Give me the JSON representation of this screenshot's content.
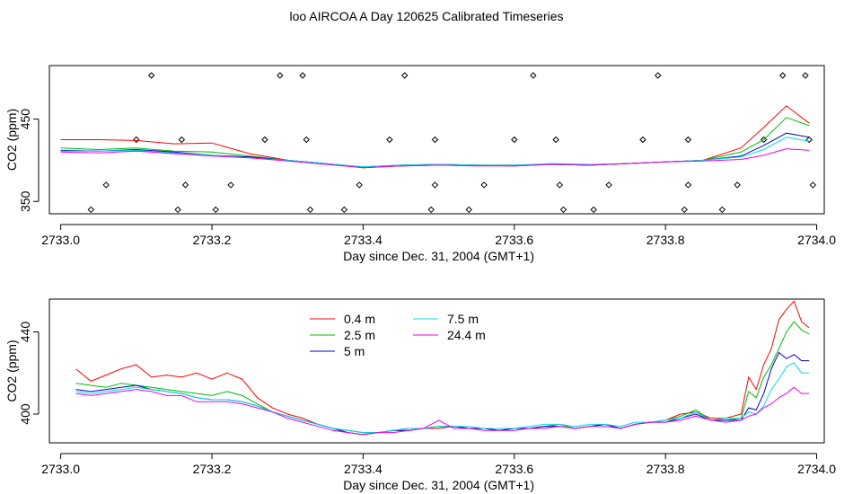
{
  "title": "loo AIRCOA A  Day 120625  Calibrated Timeseries",
  "chart_data": [
    {
      "type": "line",
      "xlabel": "Day since Dec. 31, 2004 (GMT+1)",
      "ylabel": "CO2 (ppm)",
      "xlim": [
        2732.985,
        2734.01
      ],
      "ylim": [
        335,
        515
      ],
      "xticks": [
        "2733.0",
        "2733.2",
        "2733.4",
        "2733.6",
        "2733.8",
        "2734.0"
      ],
      "yticks": [
        "350",
        "450"
      ],
      "ytick_values": [
        350,
        450
      ],
      "series": [
        {
          "name": "0.4 m",
          "color": "#ff0000",
          "x": [
            2733.0,
            2733.05,
            2733.1,
            2733.15,
            2733.2,
            2733.25,
            2733.3,
            2733.35,
            2733.4,
            2733.45,
            2733.5,
            2733.55,
            2733.6,
            2733.65,
            2733.7,
            2733.75,
            2733.8,
            2733.85,
            2733.9,
            2733.93,
            2733.96,
            2733.99
          ],
          "y": [
            425,
            425,
            424,
            420,
            421,
            408,
            400,
            396,
            392,
            394,
            395,
            394,
            394,
            395,
            394,
            396,
            398,
            400,
            415,
            440,
            466,
            445
          ]
        },
        {
          "name": "2.5 m",
          "color": "#00bb00",
          "x": [
            2733.0,
            2733.05,
            2733.1,
            2733.15,
            2733.2,
            2733.25,
            2733.3,
            2733.35,
            2733.4,
            2733.45,
            2733.5,
            2733.55,
            2733.6,
            2733.65,
            2733.7,
            2733.75,
            2733.8,
            2733.85,
            2733.9,
            2733.93,
            2733.96,
            2733.99
          ],
          "y": [
            415,
            413,
            415,
            411,
            410,
            405,
            400,
            396,
            392,
            394,
            395,
            394,
            394,
            395,
            394,
            396,
            398,
            400,
            410,
            425,
            452,
            442
          ]
        },
        {
          "name": "5 m",
          "color": "#0000cc",
          "x": [
            2733.0,
            2733.05,
            2733.1,
            2733.15,
            2733.2,
            2733.25,
            2733.3,
            2733.35,
            2733.4,
            2733.45,
            2733.5,
            2733.55,
            2733.6,
            2733.65,
            2733.7,
            2733.75,
            2733.8,
            2733.85,
            2733.9,
            2733.93,
            2733.96,
            2733.99
          ],
          "y": [
            412,
            411,
            413,
            410,
            406,
            404,
            400,
            396,
            391,
            393,
            394,
            394,
            393,
            395,
            394,
            396,
            398,
            400,
            405,
            418,
            433,
            428
          ]
        },
        {
          "name": "7.5 m",
          "color": "#00dddd",
          "x": [
            2733.0,
            2733.05,
            2733.1,
            2733.15,
            2733.2,
            2733.25,
            2733.3,
            2733.35,
            2733.4,
            2733.45,
            2733.5,
            2733.55,
            2733.6,
            2733.65,
            2733.7,
            2733.75,
            2733.8,
            2733.85,
            2733.9,
            2733.93,
            2733.96,
            2733.99
          ],
          "y": [
            411,
            411,
            412,
            409,
            406,
            403,
            400,
            396,
            392,
            394,
            395,
            394,
            394,
            396,
            395,
            396,
            398,
            400,
            404,
            413,
            428,
            423
          ]
        },
        {
          "name": "24.4 m",
          "color": "#ee00ee",
          "x": [
            2733.0,
            2733.05,
            2733.1,
            2733.15,
            2733.2,
            2733.25,
            2733.3,
            2733.35,
            2733.4,
            2733.45,
            2733.5,
            2733.55,
            2733.6,
            2733.65,
            2733.7,
            2733.75,
            2733.8,
            2733.85,
            2733.9,
            2733.93,
            2733.96,
            2733.99
          ],
          "y": [
            410,
            409,
            411,
            408,
            405,
            403,
            399,
            395,
            391,
            393,
            394,
            393,
            393,
            395,
            394,
            396,
            398,
            399,
            401,
            406,
            414,
            412
          ]
        }
      ],
      "markers": {
        "shape": "diamond",
        "x": [
          2733.04,
          2733.06,
          2733.1,
          2733.12,
          2733.155,
          2733.16,
          2733.165,
          2733.205,
          2733.225,
          2733.27,
          2733.29,
          2733.32,
          2733.325,
          2733.33,
          2733.375,
          2733.395,
          2733.435,
          2733.455,
          2733.49,
          2733.495,
          2733.495,
          2733.54,
          2733.56,
          2733.6,
          2733.625,
          2733.655,
          2733.66,
          2733.665,
          2733.705,
          2733.725,
          2733.77,
          2733.79,
          2733.825,
          2733.83,
          2733.83,
          2733.875,
          2733.895,
          2733.93,
          2733.955,
          2733.985,
          2733.99,
          2733.995
        ],
        "y": [
          340,
          370,
          425,
          503,
          340,
          425,
          370,
          340,
          370,
          425,
          503,
          503,
          425,
          340,
          340,
          370,
          425,
          503,
          340,
          370,
          425,
          340,
          370,
          425,
          503,
          425,
          370,
          340,
          340,
          370,
          425,
          503,
          340,
          370,
          425,
          340,
          370,
          425,
          503,
          503,
          425,
          370
        ]
      }
    },
    {
      "type": "line",
      "xlabel": "Day since Dec. 31, 2004 (GMT+1)",
      "ylabel": "CO2 (ppm)",
      "xlim": [
        2732.985,
        2734.01
      ],
      "ylim": [
        386,
        456
      ],
      "xticks": [
        "2733.0",
        "2733.2",
        "2733.4",
        "2733.6",
        "2733.8",
        "2734.0"
      ],
      "yticks": [
        "400",
        "440"
      ],
      "ytick_values": [
        400,
        440
      ],
      "legend": "top-left",
      "series": [
        {
          "name": "0.4 m",
          "color": "#ff0000",
          "x": [
            2733.02,
            2733.04,
            2733.06,
            2733.08,
            2733.1,
            2733.12,
            2733.14,
            2733.16,
            2733.18,
            2733.2,
            2733.22,
            2733.24,
            2733.26,
            2733.28,
            2733.3,
            2733.32,
            2733.34,
            2733.36,
            2733.38,
            2733.4,
            2733.42,
            2733.44,
            2733.46,
            2733.48,
            2733.5,
            2733.52,
            2733.54,
            2733.56,
            2733.58,
            2733.6,
            2733.62,
            2733.64,
            2733.66,
            2733.68,
            2733.7,
            2733.72,
            2733.74,
            2733.76,
            2733.78,
            2733.8,
            2733.82,
            2733.84,
            2733.86,
            2733.88,
            2733.9,
            2733.91,
            2733.92,
            2733.93,
            2733.94,
            2733.95,
            2733.96,
            2733.97,
            2733.98,
            2733.99
          ],
          "y": [
            422,
            416,
            419,
            422,
            424,
            418,
            419,
            418,
            420,
            417,
            420,
            417,
            408,
            403,
            400,
            398,
            395,
            393,
            392,
            391,
            391,
            392,
            392,
            393,
            393,
            394,
            393,
            393,
            392,
            393,
            393,
            394,
            394,
            393,
            394,
            395,
            393,
            395,
            396,
            397,
            400,
            401,
            398,
            398,
            400,
            418,
            412,
            424,
            432,
            446,
            451,
            455,
            445,
            442
          ]
        },
        {
          "name": "2.5 m",
          "color": "#00bb00",
          "x": [
            2733.02,
            2733.04,
            2733.06,
            2733.08,
            2733.1,
            2733.12,
            2733.14,
            2733.16,
            2733.18,
            2733.2,
            2733.22,
            2733.24,
            2733.26,
            2733.28,
            2733.3,
            2733.32,
            2733.34,
            2733.36,
            2733.38,
            2733.4,
            2733.42,
            2733.44,
            2733.46,
            2733.48,
            2733.5,
            2733.52,
            2733.54,
            2733.56,
            2733.58,
            2733.6,
            2733.62,
            2733.64,
            2733.66,
            2733.68,
            2733.7,
            2733.72,
            2733.74,
            2733.76,
            2733.78,
            2733.8,
            2733.82,
            2733.84,
            2733.86,
            2733.88,
            2733.9,
            2733.91,
            2733.92,
            2733.93,
            2733.94,
            2733.95,
            2733.96,
            2733.97,
            2733.98,
            2733.99
          ],
          "y": [
            415,
            414,
            413,
            415,
            414,
            413,
            412,
            411,
            410,
            409,
            411,
            409,
            405,
            401,
            399,
            397,
            395,
            393,
            392,
            391,
            391,
            392,
            393,
            393,
            394,
            394,
            393,
            393,
            392,
            393,
            393,
            394,
            395,
            393,
            394,
            395,
            393,
            395,
            396,
            397,
            399,
            402,
            397,
            397,
            398,
            411,
            408,
            418,
            424,
            432,
            440,
            445,
            441,
            439
          ]
        },
        {
          "name": "5 m",
          "color": "#0000cc",
          "x": [
            2733.02,
            2733.04,
            2733.06,
            2733.08,
            2733.1,
            2733.12,
            2733.14,
            2733.16,
            2733.18,
            2733.2,
            2733.22,
            2733.24,
            2733.26,
            2733.28,
            2733.3,
            2733.32,
            2733.34,
            2733.36,
            2733.38,
            2733.4,
            2733.42,
            2733.44,
            2733.46,
            2733.48,
            2733.5,
            2733.52,
            2733.54,
            2733.56,
            2733.58,
            2733.6,
            2733.62,
            2733.64,
            2733.66,
            2733.68,
            2733.7,
            2733.72,
            2733.74,
            2733.76,
            2733.78,
            2733.8,
            2733.82,
            2733.84,
            2733.86,
            2733.88,
            2733.9,
            2733.91,
            2733.92,
            2733.93,
            2733.94,
            2733.95,
            2733.96,
            2733.97,
            2733.98,
            2733.99
          ],
          "y": [
            412,
            411,
            412,
            413,
            414,
            412,
            411,
            410,
            408,
            407,
            407,
            406,
            404,
            401,
            399,
            397,
            395,
            393,
            391,
            390,
            391,
            392,
            392,
            393,
            394,
            394,
            393,
            393,
            392,
            393,
            393,
            394,
            394,
            393,
            394,
            395,
            393,
            395,
            396,
            396,
            398,
            400,
            397,
            397,
            397,
            403,
            402,
            410,
            422,
            430,
            427,
            429,
            426,
            426
          ]
        },
        {
          "name": "7.5 m",
          "color": "#00dddd",
          "x": [
            2733.02,
            2733.04,
            2733.06,
            2733.08,
            2733.1,
            2733.12,
            2733.14,
            2733.16,
            2733.18,
            2733.2,
            2733.22,
            2733.24,
            2733.26,
            2733.28,
            2733.3,
            2733.32,
            2733.34,
            2733.36,
            2733.38,
            2733.4,
            2733.42,
            2733.44,
            2733.46,
            2733.48,
            2733.5,
            2733.52,
            2733.54,
            2733.56,
            2733.58,
            2733.6,
            2733.62,
            2733.64,
            2733.66,
            2733.68,
            2733.7,
            2733.72,
            2733.74,
            2733.76,
            2733.78,
            2733.8,
            2733.82,
            2733.84,
            2733.86,
            2733.88,
            2733.9,
            2733.91,
            2733.92,
            2733.93,
            2733.94,
            2733.95,
            2733.96,
            2733.97,
            2733.98,
            2733.99
          ],
          "y": [
            411,
            410,
            411,
            412,
            413,
            412,
            411,
            410,
            408,
            407,
            407,
            406,
            404,
            401,
            399,
            397,
            395,
            393,
            392,
            391,
            391,
            392,
            393,
            393,
            394,
            394,
            394,
            393,
            393,
            393,
            394,
            395,
            395,
            394,
            395,
            395,
            394,
            396,
            396,
            397,
            398,
            401,
            397,
            398,
            398,
            401,
            400,
            404,
            412,
            417,
            423,
            425,
            420,
            420
          ]
        },
        {
          "name": "24.4 m",
          "color": "#ee00ee",
          "x": [
            2733.02,
            2733.04,
            2733.06,
            2733.08,
            2733.1,
            2733.12,
            2733.14,
            2733.16,
            2733.18,
            2733.2,
            2733.22,
            2733.24,
            2733.26,
            2733.28,
            2733.3,
            2733.32,
            2733.34,
            2733.36,
            2733.38,
            2733.4,
            2733.42,
            2733.44,
            2733.46,
            2733.48,
            2733.5,
            2733.52,
            2733.54,
            2733.56,
            2733.58,
            2733.6,
            2733.62,
            2733.64,
            2733.66,
            2733.68,
            2733.7,
            2733.72,
            2733.74,
            2733.76,
            2733.78,
            2733.8,
            2733.82,
            2733.84,
            2733.86,
            2733.88,
            2733.9,
            2733.91,
            2733.92,
            2733.93,
            2733.94,
            2733.95,
            2733.96,
            2733.97,
            2733.98,
            2733.99
          ],
          "y": [
            410,
            409,
            410,
            411,
            412,
            411,
            409,
            409,
            406,
            406,
            406,
            405,
            403,
            401,
            398,
            396,
            394,
            392,
            391,
            390,
            391,
            391,
            392,
            393,
            397,
            393,
            393,
            392,
            392,
            392,
            393,
            393,
            394,
            393,
            394,
            394,
            393,
            395,
            396,
            396,
            397,
            399,
            397,
            396,
            397,
            399,
            400,
            403,
            405,
            408,
            410,
            413,
            410,
            410
          ]
        }
      ]
    }
  ]
}
